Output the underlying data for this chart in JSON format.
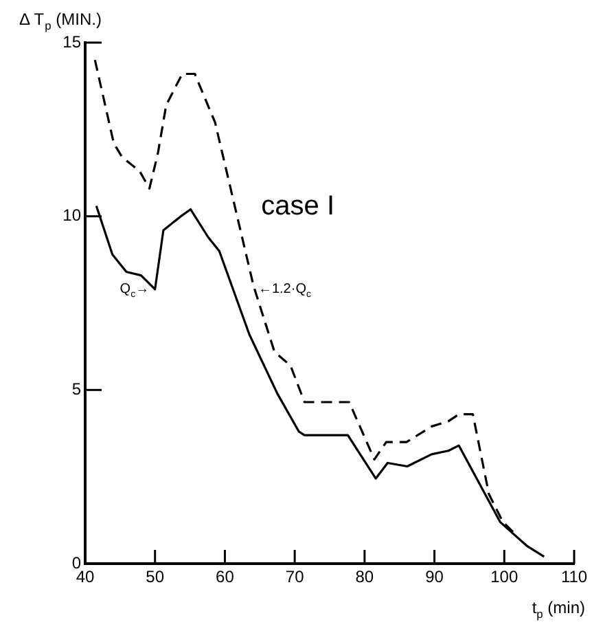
{
  "chart_data": {
    "type": "line",
    "xlabel": "t$_{p}$ (min)",
    "ylabel": "Δ T$_{p}$ (MIN.)",
    "annotations": [
      "case I"
    ],
    "xlim": [
      40,
      110
    ],
    "xticks": [
      40,
      50,
      60,
      70,
      80,
      90,
      100,
      110
    ],
    "ylim": [
      0,
      15
    ],
    "yticks": [
      0,
      5,
      10,
      15
    ],
    "grid": false,
    "legend": false,
    "marker": "none",
    "series": [
      {
        "name": "Q$_{c}$→",
        "color": "#000000",
        "line_style": "solid",
        "x": [
          41.6,
          43.9,
          45.9,
          48,
          50,
          51.2,
          53.7,
          55.1,
          57.6,
          59.2,
          63.5,
          67.5,
          70.6,
          71.4,
          77.6,
          81.6,
          83.3,
          86.1,
          89.6,
          92,
          93.5,
          99.4,
          103.3,
          105.7
        ],
        "values": [
          10.3,
          8.9,
          8.4,
          8.3,
          7.9,
          9.6,
          10,
          10.2,
          9.4,
          9,
          6.6,
          4.9,
          3.8,
          3.7,
          3.7,
          2.45,
          2.9,
          2.8,
          3.15,
          3.25,
          3.4,
          1.2,
          0.5,
          0.2
        ]
      },
      {
        "name": "←1.2·Q$_{c}$",
        "color": "#000000",
        "line_style": "dashed",
        "x": [
          41.4,
          44.1,
          45.3,
          47.8,
          49.2,
          50.4,
          51.6,
          53.9,
          55.7,
          58.6,
          64.1,
          67.1,
          69.4,
          71.4,
          77.8,
          81.4,
          83.1,
          86,
          89.6,
          92,
          93.5,
          95.5,
          97.8,
          99.8,
          101.8
        ],
        "values": [
          14.5,
          12.1,
          11.7,
          11.3,
          10.8,
          11.8,
          13.2,
          14.1,
          14.1,
          12.7,
          8,
          6.1,
          5.7,
          4.65,
          4.65,
          3,
          3.5,
          3.5,
          3.95,
          4.1,
          4.3,
          4.3,
          2,
          1.2,
          0.8
        ]
      }
    ]
  }
}
